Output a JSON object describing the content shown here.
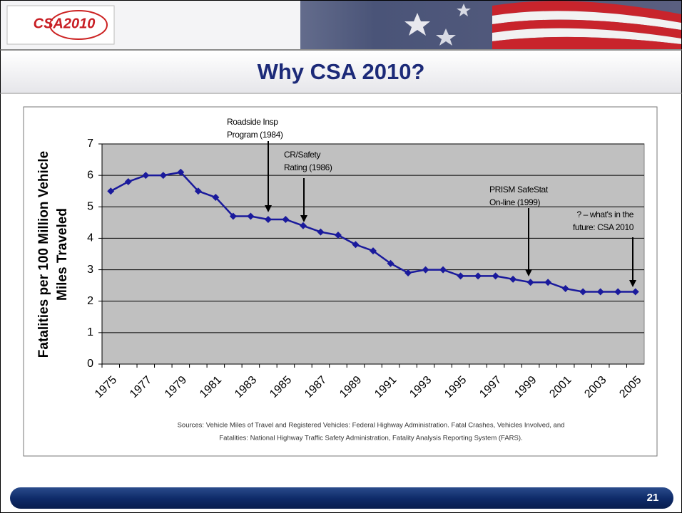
{
  "header": {
    "logo": "CSA2010"
  },
  "title": "Why CSA 2010?",
  "chart_data": {
    "type": "line",
    "y_label": [
      "Fatalities per 100 Million Vehicle",
      "Miles Traveled"
    ],
    "categories": [
      "1975",
      null,
      "1977",
      null,
      "1979",
      null,
      "1981",
      null,
      "1983",
      null,
      "1985",
      null,
      "1987",
      null,
      "1989",
      null,
      "1991",
      null,
      "1993",
      null,
      "1995",
      null,
      "1997",
      null,
      "1999",
      null,
      "2001",
      null,
      "2003",
      null,
      "2005"
    ],
    "values": [
      5.5,
      5.8,
      6.0,
      6.0,
      6.1,
      5.5,
      5.3,
      4.7,
      4.7,
      4.6,
      4.6,
      4.4,
      4.2,
      4.1,
      3.8,
      3.6,
      3.2,
      2.9,
      3.0,
      3.0,
      2.8,
      2.8,
      2.8,
      2.7,
      2.6,
      2.6,
      2.4,
      2.3,
      2.3,
      2.3,
      2.3
    ],
    "color": "#1a1a9c",
    "plot_background": "#c0c0c0",
    "ylim": [
      0,
      7
    ],
    "yticks": [
      0,
      1,
      2,
      3,
      4,
      5,
      6,
      7
    ],
    "grid": true,
    "annotations": [
      {
        "lines": [
          "Roadside Insp",
          "Program (1984)"
        ]
      },
      {
        "lines": [
          "CR/Safety",
          "Rating (1986)"
        ]
      },
      {
        "lines": [
          "PRISM SafeStat",
          "On-line (1999)"
        ]
      },
      {
        "lines": [
          "? – what's in the",
          "future: CSA 2010"
        ]
      }
    ],
    "source": [
      "Sources: Vehicle Miles of Travel and Registered Vehicles: Federal Highway Administration. Fatal Crashes, Vehicles Involved, and",
      "Fatalities: National Highway Traffic Safety Administration, Fatality Analysis Reporting System (FARS)."
    ]
  },
  "footer": {
    "page_number": "21"
  }
}
